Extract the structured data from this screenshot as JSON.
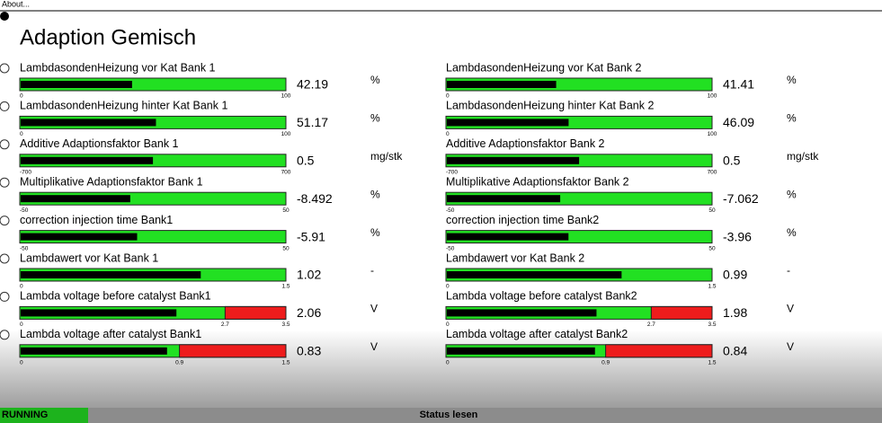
{
  "menu": {
    "about": "About..."
  },
  "title": "Adaption Gemisch",
  "rows": [
    {
      "left": {
        "label": "LambdasondenHeizung vor Kat Bank 1",
        "value": 42.19,
        "unit": "%",
        "min": 0,
        "max": 100
      },
      "right": {
        "label": "LambdasondenHeizung vor Kat Bank 2",
        "value": 41.41,
        "unit": "%",
        "min": 0,
        "max": 100
      }
    },
    {
      "left": {
        "label": "LambdasondenHeizung hinter Kat Bank 1",
        "value": 51.17,
        "unit": "%",
        "min": 0,
        "max": 100
      },
      "right": {
        "label": "LambdasondenHeizung hinter Kat Bank 2",
        "value": 46.09,
        "unit": "%",
        "min": 0,
        "max": 100
      }
    },
    {
      "left": {
        "label": "Additive Adaptionsfaktor Bank 1",
        "value": 0.5,
        "unit": "mg/stk",
        "min": -700,
        "max": 700
      },
      "right": {
        "label": "Additive Adaptionsfaktor Bank 2",
        "value": 0.5,
        "unit": "mg/stk",
        "min": -700,
        "max": 700
      }
    },
    {
      "left": {
        "label": "Multiplikative Adaptionsfaktor Bank 1",
        "value": -8.492,
        "unit": "%",
        "min": -50,
        "max": 50
      },
      "right": {
        "label": "Multiplikative Adaptionsfaktor Bank 2",
        "value": -7.062,
        "unit": "%",
        "min": -50,
        "max": 50
      }
    },
    {
      "left": {
        "label": "correction injection time Bank1",
        "value": -5.91,
        "unit": "%",
        "min": -50,
        "max": 50
      },
      "right": {
        "label": "correction injection time Bank2",
        "value": -3.96,
        "unit": "%",
        "min": -50,
        "max": 50
      }
    },
    {
      "left": {
        "label": "Lambdawert vor Kat Bank 1",
        "value": 1.02,
        "unit": "-",
        "min": 0,
        "max": 1.5
      },
      "right": {
        "label": "Lambdawert vor Kat Bank 2",
        "value": 0.99,
        "unit": "-",
        "min": 0,
        "max": 1.5
      }
    },
    {
      "left": {
        "label": "Lambda voltage before catalyst Bank1",
        "value": 2.06,
        "unit": "V",
        "min": 0,
        "max": 3.5,
        "threshold": 2.7
      },
      "right": {
        "label": "Lambda voltage before catalyst Bank2",
        "value": 1.98,
        "unit": "V",
        "min": 0,
        "max": 3.5,
        "threshold": 2.7
      }
    },
    {
      "left": {
        "label": "Lambda voltage after catalyst Bank1",
        "value": 0.83,
        "unit": "V",
        "min": 0,
        "max": 1.5,
        "threshold": 0.9
      },
      "right": {
        "label": "Lambda voltage after catalyst Bank2",
        "value": 0.84,
        "unit": "V",
        "min": 0,
        "max": 1.5,
        "threshold": 0.9
      }
    }
  ],
  "status": {
    "state": "RUNNING",
    "action": "Status lesen"
  }
}
